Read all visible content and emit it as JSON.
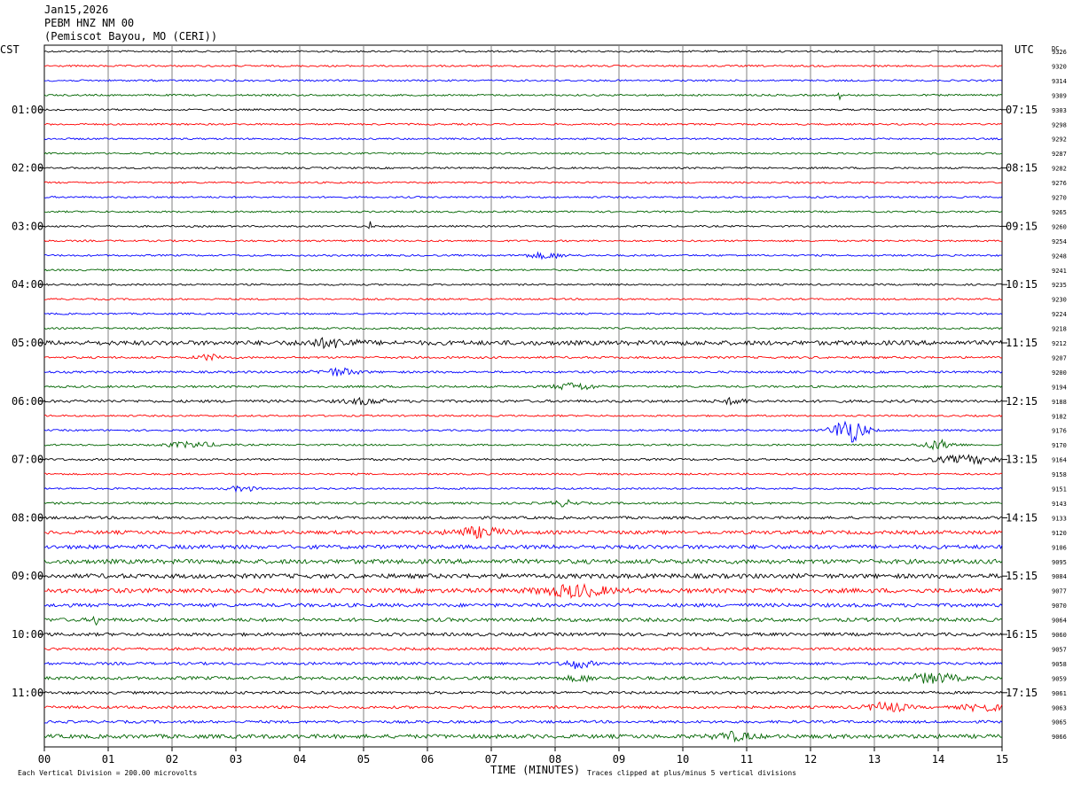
{
  "header": {
    "date": "Jan15,2026",
    "station": "PEBM HNZ NM 00",
    "location": "(Pemiscot Bayou, MO (CERI))"
  },
  "colors": {
    "cycle": [
      "#000000",
      "#ff0000",
      "#0000ff",
      "#006400"
    ],
    "grid": "#808080"
  },
  "chart_data": {
    "type": "line",
    "title": "",
    "xlabel": "TIME (MINUTES)",
    "xlim": [
      0,
      15
    ],
    "x_ticks": [
      "00",
      "01",
      "02",
      "03",
      "04",
      "05",
      "06",
      "07",
      "08",
      "09",
      "10",
      "11",
      "12",
      "13",
      "14",
      "15"
    ],
    "left_axis_label": "CST",
    "right_axis_label": "UTC",
    "dc_label": "DC",
    "left_time_labels": [
      "01:00",
      "02:00",
      "03:00",
      "04:00",
      "05:00",
      "06:00",
      "07:00",
      "08:00",
      "09:00",
      "10:00",
      "11:00"
    ],
    "right_time_labels": [
      "07:15",
      "08:15",
      "09:15",
      "10:15",
      "11:15",
      "12:15",
      "13:15",
      "14:15",
      "15:15",
      "16:15",
      "17:15"
    ],
    "traces_per_hour": 4,
    "dc_values": [
      9326,
      9320,
      9314,
      9309,
      9303,
      9298,
      9292,
      9287,
      9282,
      9276,
      9270,
      9265,
      9260,
      9254,
      9248,
      9241,
      9235,
      9230,
      9224,
      9218,
      9212,
      9207,
      9200,
      9194,
      9188,
      9182,
      9176,
      9170,
      9164,
      9158,
      9151,
      9143,
      9133,
      9120,
      9106,
      9095,
      9084,
      9077,
      9070,
      9064,
      9060,
      9057,
      9058,
      9059,
      9061,
      9063,
      9065,
      9066
    ],
    "trace_noise": [
      1,
      1,
      1,
      1,
      1,
      1,
      1,
      1,
      1,
      1,
      1,
      1,
      1,
      1,
      1,
      1,
      1,
      1,
      1,
      1,
      2.5,
      1.2,
      1.2,
      1.2,
      1.5,
      1,
      1,
      1,
      1.2,
      1,
      1,
      1.2,
      1.5,
      2,
      2.2,
      2.5,
      2.5,
      2.5,
      2,
      2,
      1.8,
      1.5,
      1.5,
      1.8,
      1.5,
      1.5,
      1.5,
      2.2
    ],
    "events": [
      {
        "trace": 3,
        "minute": 12.45,
        "amplitude": 5,
        "width": 0.02
      },
      {
        "trace": 12,
        "minute": 5.1,
        "amplitude": 6,
        "width": 0.02
      },
      {
        "trace": 14,
        "minute": 7.85,
        "amplitude": 3,
        "width": 0.3
      },
      {
        "trace": 20,
        "minute": 4.5,
        "amplitude": 4,
        "width": 0.4
      },
      {
        "trace": 21,
        "minute": 2.6,
        "amplitude": 3,
        "width": 0.2
      },
      {
        "trace": 22,
        "minute": 4.6,
        "amplitude": 4,
        "width": 0.3
      },
      {
        "trace": 23,
        "minute": 8.3,
        "amplitude": 4,
        "width": 0.3
      },
      {
        "trace": 24,
        "minute": 5.0,
        "amplitude": 3,
        "width": 0.3
      },
      {
        "trace": 24,
        "minute": 10.8,
        "amplitude": 3,
        "width": 0.2
      },
      {
        "trace": 26,
        "minute": 12.6,
        "amplitude": 14,
        "width": 0.25
      },
      {
        "trace": 27,
        "minute": 2.3,
        "amplitude": 3,
        "width": 0.4
      },
      {
        "trace": 27,
        "minute": 14.0,
        "amplitude": 5,
        "width": 0.25
      },
      {
        "trace": 28,
        "minute": 14.5,
        "amplitude": 4,
        "width": 0.6
      },
      {
        "trace": 30,
        "minute": 3.1,
        "amplitude": 3,
        "width": 0.2
      },
      {
        "trace": 31,
        "minute": 8.15,
        "amplitude": 3,
        "width": 0.2
      },
      {
        "trace": 33,
        "minute": 6.8,
        "amplitude": 5,
        "width": 0.4
      },
      {
        "trace": 37,
        "minute": 8.3,
        "amplitude": 6,
        "width": 0.5
      },
      {
        "trace": 39,
        "minute": 0.8,
        "amplitude": 5,
        "width": 0.05
      },
      {
        "trace": 42,
        "minute": 8.35,
        "amplitude": 5,
        "width": 0.2
      },
      {
        "trace": 43,
        "minute": 8.4,
        "amplitude": 3,
        "width": 0.2
      },
      {
        "trace": 43,
        "minute": 13.9,
        "amplitude": 5,
        "width": 0.4
      },
      {
        "trace": 45,
        "minute": 13.2,
        "amplitude": 5,
        "width": 0.3
      },
      {
        "trace": 45,
        "minute": 14.7,
        "amplitude": 4,
        "width": 0.3
      },
      {
        "trace": 47,
        "minute": 10.8,
        "amplitude": 4,
        "width": 0.3
      }
    ],
    "footer_left": "Each Vertical Division =  200.00 microvolts",
    "footer_right": "Traces clipped at plus/minus 5 vertical divisions"
  }
}
